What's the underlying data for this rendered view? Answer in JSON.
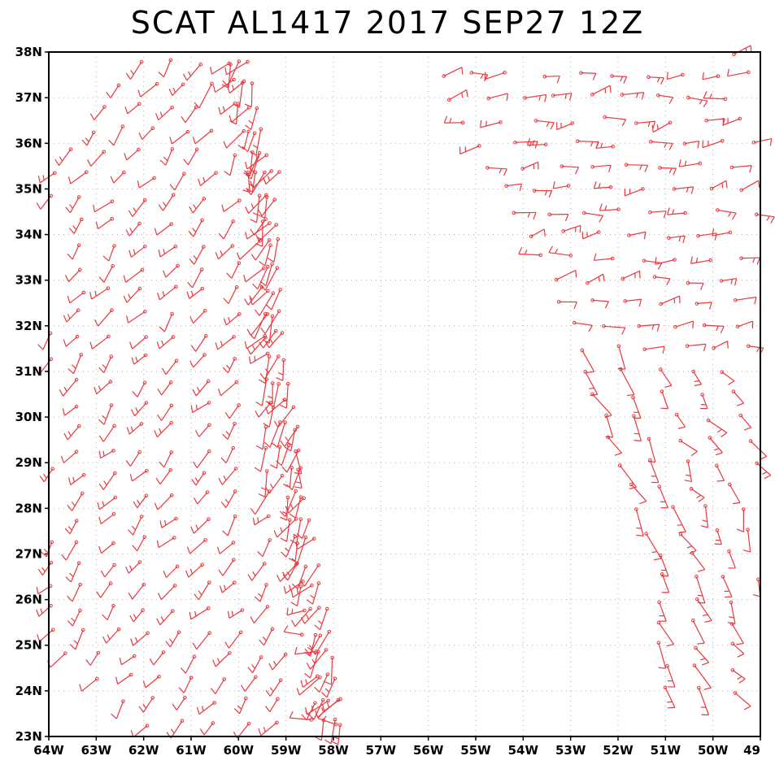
{
  "title": "SCAT AL1417 2017 SEP27 12Z",
  "colors": {
    "barb": "#e8393f",
    "frame": "#000000",
    "grid": "#b0b0b0"
  },
  "axes": {
    "lon_labels": [
      "64W",
      "63W",
      "62W",
      "61W",
      "60W",
      "59W",
      "58W",
      "57W",
      "56W",
      "55W",
      "54W",
      "53W",
      "52W",
      "51W",
      "50W",
      "49"
    ],
    "lat_labels": [
      "38N",
      "37N",
      "36N",
      "35N",
      "34N",
      "33N",
      "32N",
      "31N",
      "30N",
      "29N",
      "28N",
      "27N",
      "26N",
      "25N",
      "24N",
      "23N"
    ],
    "lon_range_deg_west": [
      64,
      49
    ],
    "lat_range_deg_north": [
      23,
      38
    ]
  },
  "chart_data": {
    "type": "scatter",
    "title": "SCAT AL1417 2017 SEP27 12Z",
    "xlabel": "",
    "ylabel": "",
    "description_of_marks": "scatterometer wind barbs (red) over two swaths",
    "swaths": [
      {
        "name": "west-swath",
        "lat_range": [
          23.2,
          37.8
        ],
        "lon_west_edge_at_lat": [
          [
            38,
            62.0
          ],
          [
            35,
            64.0
          ],
          [
            30,
            64.0
          ],
          [
            26,
            64.0
          ],
          [
            25,
            63.8
          ],
          [
            23,
            61.5
          ]
        ],
        "lon_east_edge_at_lat": [
          [
            37.5,
            59.7
          ],
          [
            35,
            59.1
          ],
          [
            32,
            59.0
          ],
          [
            29,
            58.6
          ],
          [
            27,
            58.3
          ],
          [
            25,
            57.9
          ],
          [
            23,
            57.7
          ]
        ],
        "dominant_flow_deg": 230
      },
      {
        "name": "east-swath",
        "lat_range": [
          23.8,
          38.0
        ],
        "lon_west_edge_at_lat": [
          [
            38,
            56.0
          ],
          [
            35,
            54.4
          ],
          [
            33,
            53.4
          ],
          [
            31,
            52.6
          ],
          [
            29,
            52.0
          ],
          [
            27,
            51.2
          ],
          [
            24,
            51.0
          ]
        ],
        "lon_east_edge_at_lat": [
          [
            38,
            49.0
          ],
          [
            24,
            49.0
          ]
        ],
        "dominant_flow_deg": 250
      }
    ]
  }
}
